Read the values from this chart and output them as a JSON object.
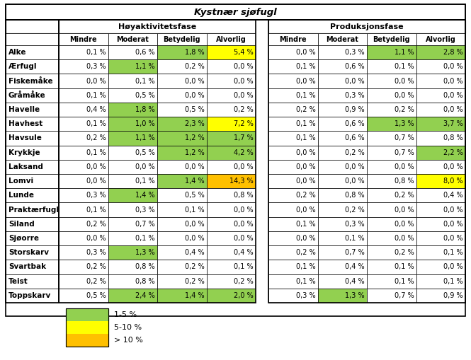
{
  "title": "Kystnær sjøfugl",
  "header1": "Høyaktivitetsfase",
  "header2": "Produksjonsfase",
  "col_headers": [
    "Mindre",
    "Moderat",
    "Betydelig",
    "Alvorlig"
  ],
  "species": [
    "Alke",
    "Ærfugl",
    "Fiskemåke",
    "Gråmåke",
    "Havelle",
    "Havhest",
    "Havsule",
    "Krykkje",
    "Laksand",
    "Lomvi",
    "Lunde",
    "Praktærfugl",
    "Siland",
    "Sjøorre",
    "Storskarv",
    "Svartbak",
    "Teist",
    "Toppskarv"
  ],
  "hoy_data": [
    [
      0.1,
      0.6,
      1.8,
      5.4
    ],
    [
      0.3,
      1.1,
      0.2,
      0.0
    ],
    [
      0.0,
      0.1,
      0.0,
      0.0
    ],
    [
      0.1,
      0.5,
      0.0,
      0.0
    ],
    [
      0.4,
      1.8,
      0.5,
      0.2
    ],
    [
      0.1,
      1.0,
      2.3,
      7.2
    ],
    [
      0.2,
      1.1,
      1.2,
      1.7
    ],
    [
      0.1,
      0.5,
      1.2,
      4.2
    ],
    [
      0.0,
      0.0,
      0.0,
      0.0
    ],
    [
      0.0,
      0.1,
      1.4,
      14.3
    ],
    [
      0.3,
      1.4,
      0.5,
      0.8
    ],
    [
      0.1,
      0.3,
      0.1,
      0.0
    ],
    [
      0.2,
      0.7,
      0.0,
      0.0
    ],
    [
      0.0,
      0.1,
      0.0,
      0.0
    ],
    [
      0.3,
      1.3,
      0.4,
      0.4
    ],
    [
      0.2,
      0.8,
      0.2,
      0.1
    ],
    [
      0.2,
      0.8,
      0.2,
      0.2
    ],
    [
      0.5,
      2.4,
      1.4,
      2.0
    ]
  ],
  "prod_data": [
    [
      0.0,
      0.3,
      1.1,
      2.8
    ],
    [
      0.1,
      0.6,
      0.1,
      0.0
    ],
    [
      0.0,
      0.0,
      0.0,
      0.0
    ],
    [
      0.1,
      0.3,
      0.0,
      0.0
    ],
    [
      0.2,
      0.9,
      0.2,
      0.0
    ],
    [
      0.1,
      0.6,
      1.3,
      3.7
    ],
    [
      0.1,
      0.6,
      0.7,
      0.8
    ],
    [
      0.0,
      0.2,
      0.7,
      2.2
    ],
    [
      0.0,
      0.0,
      0.0,
      0.0
    ],
    [
      0.0,
      0.0,
      0.8,
      8.0
    ],
    [
      0.2,
      0.8,
      0.2,
      0.4
    ],
    [
      0.0,
      0.2,
      0.0,
      0.0
    ],
    [
      0.1,
      0.3,
      0.0,
      0.0
    ],
    [
      0.0,
      0.1,
      0.0,
      0.0
    ],
    [
      0.2,
      0.7,
      0.2,
      0.1
    ],
    [
      0.1,
      0.4,
      0.1,
      0.0
    ],
    [
      0.1,
      0.4,
      0.1,
      0.1
    ],
    [
      0.3,
      1.3,
      0.7,
      0.9
    ]
  ],
  "color_none": "#ffffff",
  "color_green": "#92d050",
  "color_yellow": "#ffff00",
  "color_orange": "#ffc000",
  "legend_items": [
    "1-5 %",
    "5-10 %",
    "> 10 %"
  ],
  "legend_colors": [
    "#92d050",
    "#ffff00",
    "#ffc000"
  ]
}
